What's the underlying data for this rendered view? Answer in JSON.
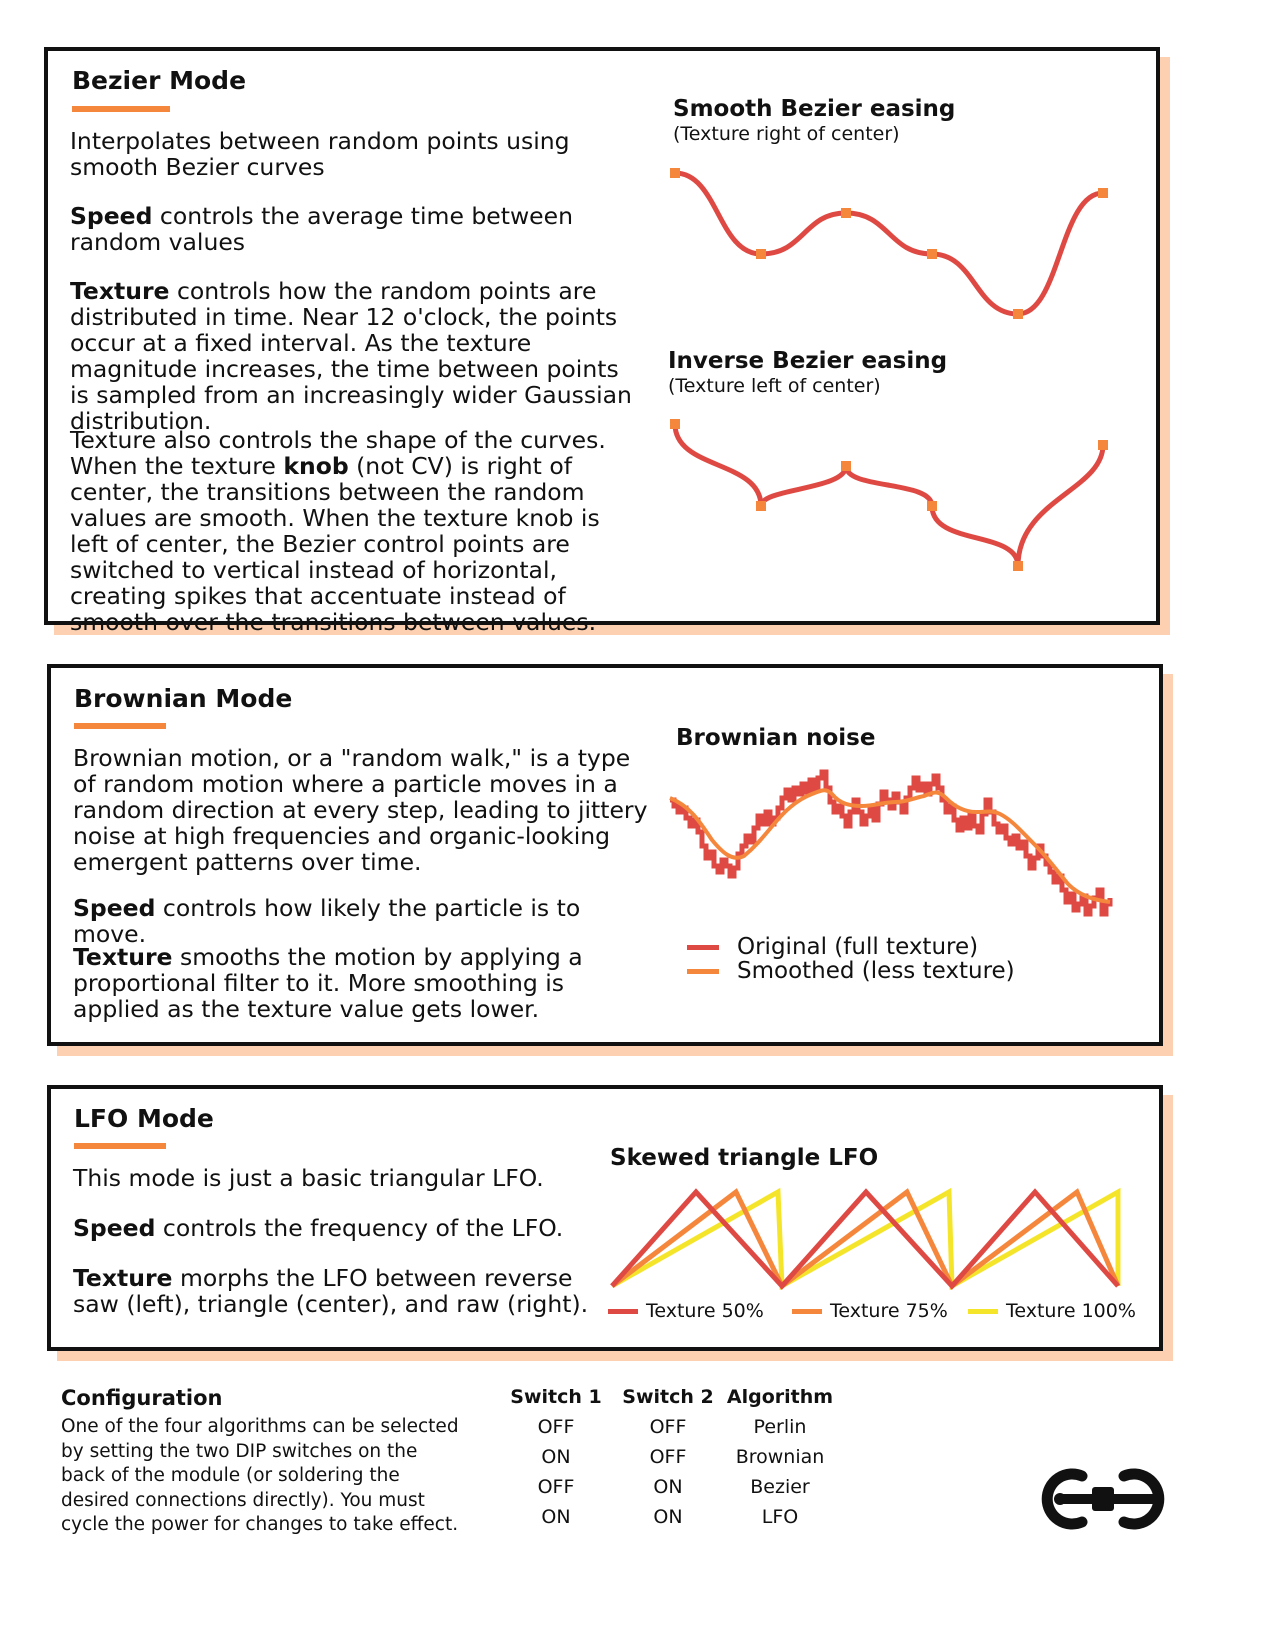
{
  "bezier": {
    "heading": "Bezier Mode",
    "intro": "Interpolates between random points using smooth Bezier curves",
    "speed_label": "Speed",
    "speed_text": " controls the average time between random values",
    "texture_label": "Texture",
    "texture_text": " controls how the random points are distributed in time. Near 12 o'clock, the points occur at a fixed interval. As the texture magnitude increases, the time between points is sampled from an increasingly wider Gaussian distribution.",
    "shape_text_1": "Texture also controls the shape of the curves. When the texture ",
    "shape_knob": "knob",
    "shape_text_2": " (not CV) is right of center, the transitions between the random values are smooth. When the texture knob is left of center, the Bezier control points are switched to vertical instead of horizontal, creating spikes that accentuate instead of smooth over the transitions between values.",
    "fig1_title": "Smooth Bezier easing",
    "fig1_sub": "(Texture right of center)",
    "fig2_title": "Inverse Bezier easing",
    "fig2_sub": "(Texture left of center)"
  },
  "brownian": {
    "heading": "Brownian Mode",
    "intro": "Brownian motion, or a \"random walk,\" is a type of random motion where a particle moves in a random direction at every step, leading to jittery noise at high frequencies and organic-looking emergent patterns over time.",
    "speed_label": "Speed",
    "speed_text": " controls how likely the particle is to move.",
    "texture_label": "Texture",
    "texture_text": " smooths the motion by applying a proportional filter to it. More smoothing is applied as the texture value gets lower.",
    "fig_title": "Brownian noise",
    "legend": [
      {
        "label": "Original (full texture)",
        "color": "#de4a43"
      },
      {
        "label": "Smoothed (less texture)",
        "color": "#f5873c"
      }
    ]
  },
  "lfo": {
    "heading": "LFO Mode",
    "intro": "This mode is just a basic triangular LFO.",
    "speed_label": "Speed",
    "speed_text": " controls the frequency of the LFO.",
    "texture_label": "Texture",
    "texture_text": " morphs the LFO between reverse saw (left), triangle (center), and raw (right).",
    "fig_title": "Skewed triangle LFO",
    "legend": [
      {
        "label": "Texture 50%",
        "color": "#de4a43"
      },
      {
        "label": "Texture 75%",
        "color": "#f5873c"
      },
      {
        "label": "Texture 100%",
        "color": "#f5e52a"
      }
    ]
  },
  "configuration": {
    "title": "Configuration",
    "text": "One of the four algorithms can be selected by setting the two DIP switches on the back of the module (or soldering the desired connections directly). You must cycle the power for changes to take effect.",
    "headers": [
      "Switch 1",
      "Switch 2",
      "Algorithm"
    ],
    "rows": [
      [
        "OFF",
        "OFF",
        "Perlin"
      ],
      [
        "ON",
        "OFF",
        "Brownian"
      ],
      [
        "OFF",
        "ON",
        "Bezier"
      ],
      [
        "ON",
        "ON",
        "LFO"
      ]
    ]
  },
  "colors": {
    "accent_orange": "#f5873c",
    "curve_red": "#de4a43",
    "lfo_yellow": "#f5e52a",
    "shadow": "#fdd0b1"
  },
  "icons": [
    "logo-icon"
  ]
}
